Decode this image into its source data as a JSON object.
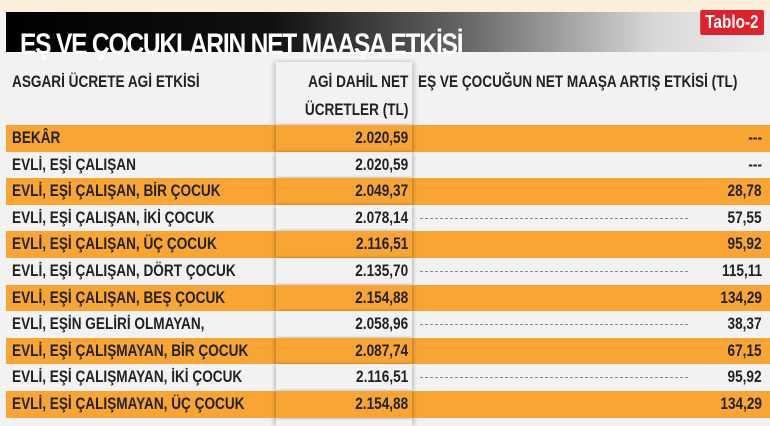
{
  "title": "EŞ VE ÇOCUKLARIN NET MAAŞA ETKİSİ",
  "tag": "Tablo-2",
  "colors": {
    "orange": "#f8a534",
    "tag_red": "#e0202a",
    "row_plain": "#f2f2f2"
  },
  "headers": [
    "ASGARİ ÜCRETE AGİ ETKİSİ",
    "AGİ DAHİL NET",
    "ÜCRETLER (TL)",
    "EŞ VE ÇOCUĞUN NET MAAŞA ARTIŞ ETKİSİ (TL)"
  ],
  "rows": [
    {
      "label": "BEKÂR",
      "net": "2.020,59",
      "effect": "---"
    },
    {
      "label": "EVLİ, EŞİ ÇALIŞAN",
      "net": "2.020,59",
      "effect": "---"
    },
    {
      "label": "EVLİ, EŞİ ÇALIŞAN, BİR ÇOCUK",
      "net": "2.049,37",
      "effect": "28,78"
    },
    {
      "label": "EVLİ, EŞİ ÇALIŞAN, İKİ ÇOCUK",
      "net": "2.078,14",
      "effect": "57,55"
    },
    {
      "label": "EVLİ, EŞİ ÇALIŞAN, ÜÇ ÇOCUK",
      "net": "2.116,51",
      "effect": "95,92"
    },
    {
      "label": "EVLİ, EŞİ ÇALIŞAN, DÖRT ÇOCUK",
      "net": "2.135,70",
      "effect": "115,11"
    },
    {
      "label": "EVLİ, EŞİ ÇALIŞAN, BEŞ ÇOCUK",
      "net": "2.154,88",
      "effect": "134,29"
    },
    {
      "label": "EVLİ, EŞİN GELİRİ OLMAYAN,",
      "net": "2.058,96",
      "effect": "38,37"
    },
    {
      "label": "EVLİ, EŞİ ÇALIŞMAYAN, BİR ÇOCUK",
      "net": "2.087,74",
      "effect": "67,15"
    },
    {
      "label": "EVLİ,  EŞİ ÇALIŞMAYAN, İKİ ÇOCUK",
      "net": "2.116,51",
      "effect": "95,92"
    },
    {
      "label": "EVLİ,  EŞİ ÇALIŞMAYAN, ÜÇ ÇOCUK",
      "net": "2.154,88",
      "effect": "134,29"
    }
  ]
}
